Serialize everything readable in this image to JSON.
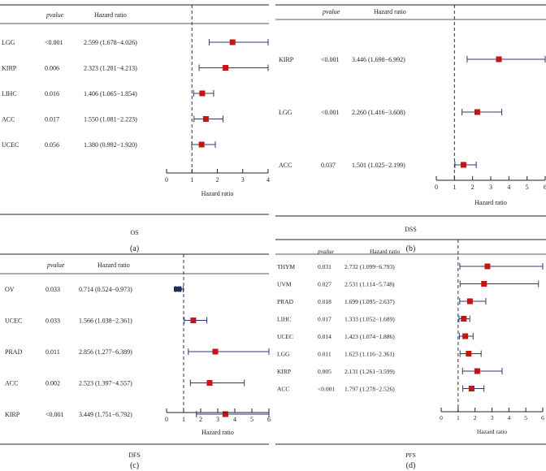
{
  "colors": {
    "marker": "#cc1111",
    "protective_marker": "#1f2d5c",
    "ci_line": "#2b3a7a",
    "rule": "#222222"
  },
  "headers": {
    "pvalue": "pvalue",
    "hazard_ratio": "Hazard ratio"
  },
  "chart_data": [
    {
      "type": "forest",
      "panel_label": "(a)",
      "footer_label": "OS",
      "xlabel": "Hazard ratio",
      "xlim": [
        0,
        4
      ],
      "xticks": [
        "0",
        "1",
        "2",
        "3",
        "4"
      ],
      "reference_line": 1,
      "rows": [
        {
          "name": "LGG",
          "pvalue": "<0.001",
          "hr_text": "2.599 (1.678−4.026)",
          "hr": 2.599,
          "lo": 1.678,
          "hi": 4.026,
          "marker": "square"
        },
        {
          "name": "KIRP",
          "pvalue": "0.006",
          "hr_text": "2.323 (1.281−4.213)",
          "hr": 2.323,
          "lo": 1.281,
          "hi": 4.213,
          "marker": "square"
        },
        {
          "name": "LIHC",
          "pvalue": "0.016",
          "hr_text": "1.406 (1.065−1.854)",
          "hr": 1.406,
          "lo": 1.065,
          "hi": 1.854,
          "marker": "square"
        },
        {
          "name": "ACC",
          "pvalue": "0.017",
          "hr_text": "1.550 (1.081−2.223)",
          "hr": 1.55,
          "lo": 1.081,
          "hi": 2.223,
          "marker": "square"
        },
        {
          "name": "UCEC",
          "pvalue": "0.056",
          "hr_text": "1.380 (0.992−1.920)",
          "hr": 1.38,
          "lo": 0.992,
          "hi": 1.92,
          "marker": "square"
        }
      ]
    },
    {
      "type": "forest",
      "panel_label": "(b)",
      "footer_label": "DSS",
      "xlabel": "Hazard ratio",
      "xlim": [
        0,
        6
      ],
      "xticks": [
        "0",
        "1",
        "2",
        "3",
        "4",
        "5",
        "6"
      ],
      "reference_line": 1,
      "rows": [
        {
          "name": "KIRP",
          "pvalue": "<0.001",
          "hr_text": "3.446 (1.698−6.992)",
          "hr": 3.446,
          "lo": 1.698,
          "hi": 6.992,
          "marker": "square"
        },
        {
          "name": "LGG",
          "pvalue": "<0.001",
          "hr_text": "2.260 (1.416−3.608)",
          "hr": 2.26,
          "lo": 1.416,
          "hi": 3.608,
          "marker": "square"
        },
        {
          "name": "ACC",
          "pvalue": "0.037",
          "hr_text": "1.501 (1.025−2.199)",
          "hr": 1.501,
          "lo": 1.025,
          "hi": 2.199,
          "marker": "square"
        }
      ]
    },
    {
      "type": "forest",
      "panel_label": "(c)",
      "footer_label": "DFS",
      "xlabel": "Hazard ratio",
      "xlim": [
        0,
        6
      ],
      "xticks": [
        "0",
        "1",
        "2",
        "3",
        "4",
        "5",
        "6"
      ],
      "reference_line": 1,
      "rows": [
        {
          "name": "OV",
          "pvalue": "0.033",
          "hr_text": "0.714 (0.524−0.973)",
          "hr": 0.714,
          "lo": 0.524,
          "hi": 0.973,
          "marker": "diamond"
        },
        {
          "name": "UCEC",
          "pvalue": "0.033",
          "hr_text": "1.566 (1.038−2.361)",
          "hr": 1.566,
          "lo": 1.038,
          "hi": 2.361,
          "marker": "square"
        },
        {
          "name": "PRAD",
          "pvalue": "0.011",
          "hr_text": "2.856 (1.277−6.389)",
          "hr": 2.856,
          "lo": 1.277,
          "hi": 6.389,
          "marker": "square"
        },
        {
          "name": "ACC",
          "pvalue": "0.002",
          "hr_text": "2.523 (1.397−4.557)",
          "hr": 2.523,
          "lo": 1.397,
          "hi": 4.557,
          "marker": "square"
        },
        {
          "name": "KIRP",
          "pvalue": "<0.001",
          "hr_text": "3.449 (1.751−6.792)",
          "hr": 3.449,
          "lo": 1.751,
          "hi": 6.792,
          "marker": "square"
        }
      ]
    },
    {
      "type": "forest",
      "panel_label": "(d)",
      "footer_label": "PFS",
      "xlabel": "Hazard ratio",
      "xlim": [
        0,
        6
      ],
      "xticks": [
        "0",
        "1",
        "2",
        "3",
        "4",
        "5",
        "6"
      ],
      "reference_line": 1,
      "rows": [
        {
          "name": "THYM",
          "pvalue": "0.031",
          "hr_text": "2.732 (1.099−6.793)",
          "hr": 2.732,
          "lo": 1.099,
          "hi": 6.793,
          "marker": "square"
        },
        {
          "name": "UVM",
          "pvalue": "0.027",
          "hr_text": "2.531 (1.114−5.748)",
          "hr": 2.531,
          "lo": 1.114,
          "hi": 5.748,
          "marker": "square"
        },
        {
          "name": "PRAD",
          "pvalue": "0.018",
          "hr_text": "1.699 (1.095−2.637)",
          "hr": 1.699,
          "lo": 1.095,
          "hi": 2.637,
          "marker": "square"
        },
        {
          "name": "LIHC",
          "pvalue": "0.017",
          "hr_text": "1.333 (1.052−1.689)",
          "hr": 1.333,
          "lo": 1.052,
          "hi": 1.689,
          "marker": "square"
        },
        {
          "name": "UCEC",
          "pvalue": "0.014",
          "hr_text": "1.423 (1.074−1.886)",
          "hr": 1.423,
          "lo": 1.074,
          "hi": 1.886,
          "marker": "square"
        },
        {
          "name": "LGG",
          "pvalue": "0.011",
          "hr_text": "1.623 (1.116−2.361)",
          "hr": 1.623,
          "lo": 1.116,
          "hi": 2.361,
          "marker": "square"
        },
        {
          "name": "KIRP",
          "pvalue": "0.005",
          "hr_text": "2.131 (1.261−3.599)",
          "hr": 2.131,
          "lo": 1.261,
          "hi": 3.599,
          "marker": "square"
        },
        {
          "name": "ACC",
          "pvalue": "<0.001",
          "hr_text": "1.797 (1.278−2.526)",
          "hr": 1.797,
          "lo": 1.278,
          "hi": 2.526,
          "marker": "square"
        }
      ]
    }
  ]
}
